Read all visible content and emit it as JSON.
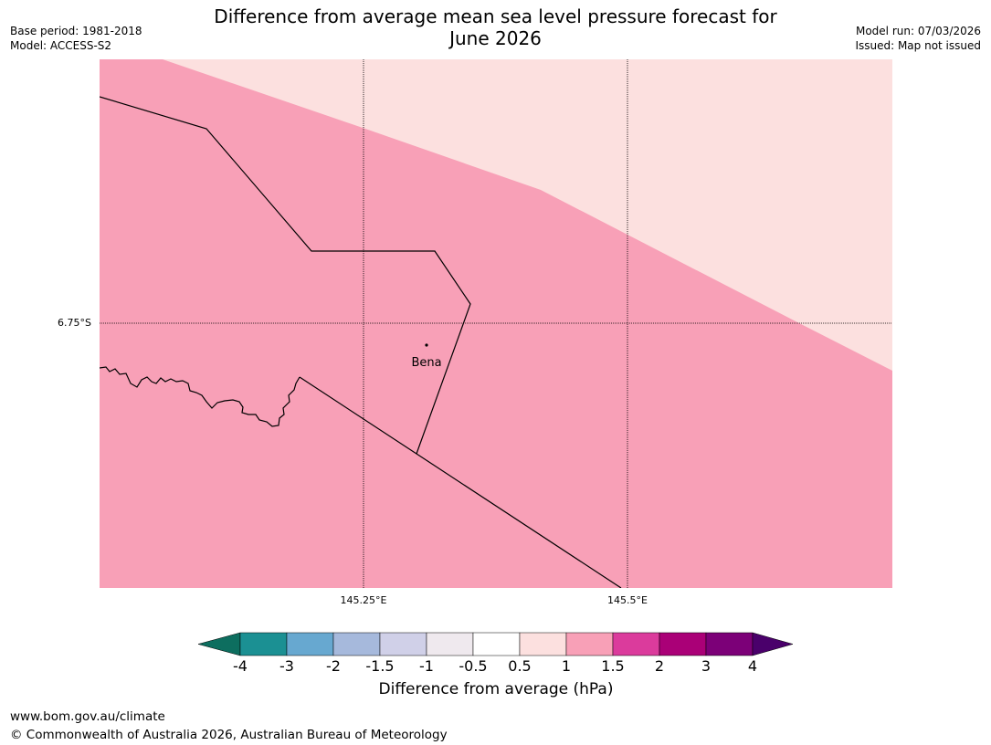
{
  "header": {
    "title_line1": "Difference from average mean sea level pressure forecast for",
    "title_line2": "June 2026",
    "base_period": "Base period: 1981-2018",
    "model": "Model: ACCESS-S2",
    "model_run": "Model run: 07/03/2026",
    "issued": "Issued: Map not issued"
  },
  "map": {
    "lat_label": "6.75°S",
    "lon_labels": [
      "145.25°E",
      "145.5°E"
    ],
    "place_label": "Bena",
    "colors": {
      "band_0_5_to_1": "#fce0df",
      "band_1_to_1_5": "#f8a0b7",
      "coast": "#000000",
      "gridline": "#000000"
    }
  },
  "colorbar": {
    "ticks": [
      "-4",
      "-3",
      "-2",
      "-1.5",
      "-1",
      "-0.5",
      "0.5",
      "1",
      "1.5",
      "2",
      "3",
      "4"
    ],
    "colors": [
      "#0d6e5f",
      "#1b9093",
      "#67a8d0",
      "#a6b9dc",
      "#d0d0e8",
      "#efe9ee",
      "#ffffff",
      "#fce0df",
      "#f8a0b7",
      "#db3b9c",
      "#aa0077",
      "#7c0078",
      "#4a006b"
    ],
    "label": "Difference from average (hPa)"
  },
  "footer": {
    "url": "www.bom.gov.au/climate",
    "copyright": "© Commonwealth of Australia 2026, Australian Bureau of Meteorology"
  }
}
